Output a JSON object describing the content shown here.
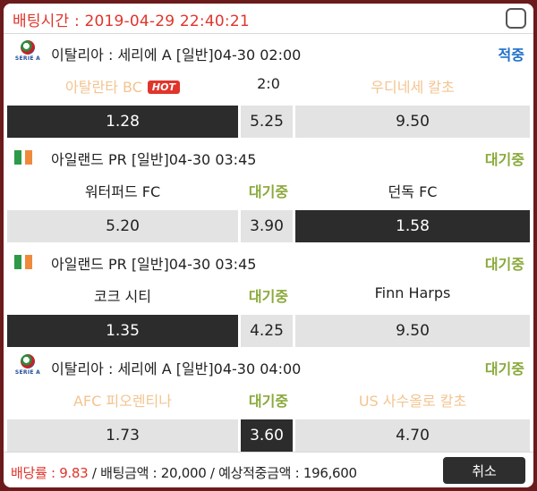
{
  "header": {
    "title": "배팅시간 : 2019-04-29 22:40:21"
  },
  "matches": [
    {
      "league_icon": "serie-a-logo",
      "league_logo_text": "SERIE A",
      "league": "이탈리아 : 세리에 A [일반]04-30 02:00",
      "status": "적중",
      "home": "아탈란타 BC",
      "hot": "HOT",
      "middle": "2:0",
      "away": "우디네세 칼초",
      "odds": {
        "home": "1.28",
        "draw": "5.25",
        "away": "9.50"
      }
    },
    {
      "league_icon": "ireland-flag",
      "league": "아일랜드 PR [일반]04-30 03:45",
      "status": "대기중",
      "home": "워터퍼드 FC",
      "middle": "대기중",
      "away": "던독 FC",
      "odds": {
        "home": "5.20",
        "draw": "3.90",
        "away": "1.58"
      }
    },
    {
      "league_icon": "ireland-flag",
      "league": "아일랜드 PR [일반]04-30 03:45",
      "status": "대기중",
      "home": "코크 시티",
      "middle": "대기중",
      "away": "Finn Harps",
      "odds": {
        "home": "1.35",
        "draw": "4.25",
        "away": "9.50"
      }
    },
    {
      "league_icon": "serie-a-logo",
      "league_logo_text": "SERIE A",
      "league": "이탈리아 : 세리에 A [일반]04-30 04:00",
      "status": "대기중",
      "home": "AFC 피오렌티나",
      "middle": "대기중",
      "away": "US 사수올로 칼초",
      "odds": {
        "home": "1.73",
        "draw": "3.60",
        "away": "4.70"
      }
    }
  ],
  "footer": {
    "rate_label": "배당률 : 9.83",
    "rest": " / 배팅금액 : 20,000 / 예상적중금액 : 196,600",
    "cancel_label": "취소"
  },
  "colors": {
    "accent": "#e0352b",
    "waiting": "#8aa93a",
    "hit": "#1f6fc9",
    "selected": "#2c2c2c"
  }
}
